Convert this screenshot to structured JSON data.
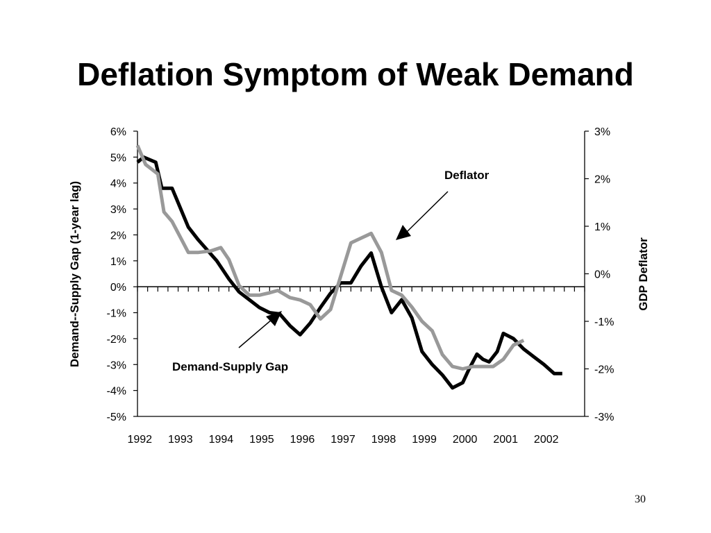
{
  "slide": {
    "title": "Deflation Symptom of Weak Demand",
    "page_number": "30"
  },
  "chart_data": {
    "type": "line",
    "xlabel": "",
    "ylabel_left": "Demand--Supply Gap (1-year lag)",
    "ylabel_right": "GDP Deflator",
    "x_tick_labels": [
      "1992",
      "1993",
      "1994",
      "1995",
      "1996",
      "1997",
      "1998",
      "1999",
      "2000",
      "2001",
      "2002"
    ],
    "y_left_tick_labels": [
      "6%",
      "5%",
      "4%",
      "3%",
      "2%",
      "1%",
      "0%",
      "-1%",
      "-2%",
      "-3%",
      "-4%",
      "-5%"
    ],
    "y_right_tick_labels": [
      "3%",
      "2%",
      "1%",
      "0%",
      "-1%",
      "-2%",
      "-3%"
    ],
    "ylim_left": [
      -5,
      6
    ],
    "ylim_right": [
      -3,
      3
    ],
    "legend": "none",
    "grid": false,
    "annotations": [
      {
        "text": "Deflator",
        "points_to": "Deflator"
      },
      {
        "text": "Demand-Supply Gap",
        "points_to": "Demand-Supply Gap"
      }
    ],
    "series": [
      {
        "name": "Demand-Supply Gap",
        "axis": "left",
        "color": "#000000",
        "x": [
          1992.0,
          1992.15,
          1992.45,
          1992.6,
          1992.85,
          1993.25,
          1993.5,
          1993.95,
          1994.25,
          1994.5,
          1994.75,
          1995.0,
          1995.25,
          1995.5,
          1995.75,
          1996.0,
          1996.25,
          1996.5,
          1996.75,
          1997.0,
          1997.25,
          1997.5,
          1997.75,
          1998.0,
          1998.25,
          1998.5,
          1998.75,
          1999.0,
          1999.25,
          1999.5,
          1999.75,
          2000.0,
          2000.15,
          2000.35,
          2000.5,
          2000.65,
          2000.85,
          2001.0,
          2001.25,
          2001.5,
          2001.75,
          2002.0,
          2002.25,
          2002.45
        ],
        "y": [
          4.8,
          5.0,
          4.8,
          3.8,
          3.8,
          2.3,
          1.8,
          1.0,
          0.3,
          -0.2,
          -0.5,
          -0.8,
          -1.0,
          -1.05,
          -1.5,
          -1.85,
          -1.4,
          -0.8,
          -0.25,
          0.15,
          0.15,
          0.8,
          1.3,
          0.0,
          -1.0,
          -0.5,
          -1.2,
          -2.5,
          -3.0,
          -3.4,
          -3.9,
          -3.7,
          -3.2,
          -2.6,
          -2.8,
          -2.9,
          -2.5,
          -1.8,
          -2.0,
          -2.4,
          -2.7,
          -3.0,
          -3.35,
          -3.35
        ]
      },
      {
        "name": "Deflator",
        "axis": "right",
        "color": "#999999",
        "x": [
          1992.0,
          1992.2,
          1992.5,
          1992.65,
          1992.85,
          1993.25,
          1993.5,
          1993.8,
          1994.05,
          1994.25,
          1994.5,
          1994.75,
          1995.0,
          1995.25,
          1995.45,
          1995.75,
          1996.0,
          1996.25,
          1996.5,
          1996.75,
          1997.0,
          1997.25,
          1997.5,
          1997.75,
          1998.0,
          1998.25,
          1998.5,
          1998.75,
          1999.0,
          1999.25,
          1999.5,
          1999.75,
          2000.0,
          2000.25,
          2000.5,
          2000.75,
          2001.0,
          2001.25,
          2001.5
        ],
        "y": [
          2.7,
          2.3,
          2.1,
          1.3,
          1.1,
          0.45,
          0.45,
          0.48,
          0.55,
          0.3,
          -0.25,
          -0.45,
          -0.45,
          -0.4,
          -0.35,
          -0.5,
          -0.55,
          -0.65,
          -0.95,
          -0.75,
          -0.05,
          0.65,
          0.75,
          0.85,
          0.45,
          -0.35,
          -0.45,
          -0.7,
          -1.0,
          -1.2,
          -1.7,
          -1.95,
          -2.0,
          -1.95,
          -1.95,
          -1.95,
          -1.8,
          -1.5,
          -1.4
        ]
      }
    ]
  }
}
